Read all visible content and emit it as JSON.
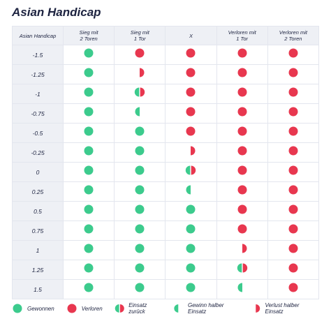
{
  "title": "Asian Handicap",
  "header": [
    "Asian Handicap",
    "Sieg mit\n2 Toren",
    "Sieg mit\n1 Tor",
    "X",
    "Verloren mit\n1 Tor",
    "Verloren mit\n2 Toren"
  ],
  "legend": [
    "Gewonnen",
    "Verloren",
    "Einsatz zurück",
    "Gewinn halber Einsatz",
    "Verlust halber Einsatz"
  ],
  "rows": [
    {
      "handicap": "-1.5",
      "cells": [
        0,
        1,
        1,
        1,
        1
      ]
    },
    {
      "handicap": "-1.25",
      "cells": [
        0,
        4,
        1,
        1,
        1
      ]
    },
    {
      "handicap": "-1",
      "cells": [
        0,
        2,
        1,
        1,
        1
      ]
    },
    {
      "handicap": "-0.75",
      "cells": [
        0,
        3,
        1,
        1,
        1
      ]
    },
    {
      "handicap": "-0.5",
      "cells": [
        0,
        0,
        1,
        1,
        1
      ]
    },
    {
      "handicap": "-0.25",
      "cells": [
        0,
        0,
        4,
        1,
        1
      ]
    },
    {
      "handicap": "0",
      "cells": [
        0,
        0,
        2,
        1,
        1
      ]
    },
    {
      "handicap": "0.25",
      "cells": [
        0,
        0,
        3,
        1,
        1
      ]
    },
    {
      "handicap": "0.5",
      "cells": [
        0,
        0,
        0,
        1,
        1
      ]
    },
    {
      "handicap": "0.75",
      "cells": [
        0,
        0,
        0,
        1,
        1
      ]
    },
    {
      "handicap": "1",
      "cells": [
        0,
        0,
        0,
        4,
        1
      ]
    },
    {
      "handicap": "1.25",
      "cells": [
        0,
        0,
        0,
        2,
        1
      ]
    },
    {
      "handicap": "1.5",
      "cells": [
        0,
        0,
        0,
        3,
        1
      ]
    }
  ]
}
